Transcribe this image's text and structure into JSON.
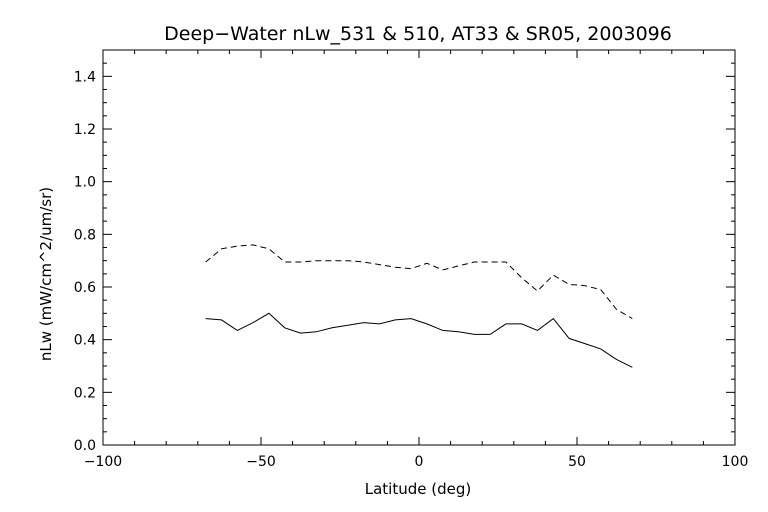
{
  "chart_data": {
    "type": "line",
    "title": "Deep−Water nLw_531 & 510, AT33 & SR05, 2003096",
    "xlabel": "Latitude (deg)",
    "ylabel": "nLw (mW/cm^2/um/sr)",
    "xlim": [
      -100,
      100
    ],
    "ylim": [
      0.0,
      1.5
    ],
    "x_ticks": [
      -100,
      -50,
      0,
      50,
      100
    ],
    "x_tick_labels": [
      "−100",
      "−50",
      "0",
      "50",
      "100"
    ],
    "y_ticks": [
      0.0,
      0.2,
      0.4,
      0.6,
      0.8,
      1.0,
      1.2,
      1.4
    ],
    "y_tick_labels": [
      "0.0",
      "0.2",
      "0.4",
      "0.6",
      "0.8",
      "1.0",
      "1.2",
      "1.4"
    ],
    "grid": false,
    "legend": "none",
    "series": [
      {
        "style": "solid",
        "color": "#000000",
        "x": [
          -67.5,
          -62.5,
          -57.5,
          -52.5,
          -47.5,
          -42.5,
          -37.5,
          -32.5,
          -27.5,
          -22.5,
          -17.5,
          -12.5,
          -7.5,
          -2.5,
          2.5,
          7.5,
          12.5,
          17.5,
          22.5,
          27.5,
          32.5,
          37.5,
          42.5,
          47.5,
          52.5,
          57.5,
          62.5,
          67.5
        ],
        "y": [
          0.48,
          0.475,
          0.435,
          0.465,
          0.5,
          0.445,
          0.425,
          0.43,
          0.445,
          0.455,
          0.465,
          0.46,
          0.475,
          0.48,
          0.46,
          0.435,
          0.43,
          0.42,
          0.42,
          0.46,
          0.46,
          0.435,
          0.48,
          0.405,
          0.385,
          0.365,
          0.325,
          0.295
        ]
      },
      {
        "style": "dashed",
        "color": "#000000",
        "x": [
          -67.5,
          -62.5,
          -57.5,
          -52.5,
          -47.5,
          -42.5,
          -37.5,
          -32.5,
          -27.5,
          -22.5,
          -17.5,
          -12.5,
          -7.5,
          -2.5,
          2.5,
          7.5,
          12.5,
          17.5,
          22.5,
          27.5,
          32.5,
          37.5,
          42.5,
          47.5,
          52.5,
          57.5,
          62.5,
          67.5
        ],
        "y": [
          0.695,
          0.745,
          0.755,
          0.76,
          0.745,
          0.695,
          0.695,
          0.7,
          0.7,
          0.7,
          0.695,
          0.685,
          0.675,
          0.67,
          0.69,
          0.665,
          0.68,
          0.695,
          0.695,
          0.695,
          0.635,
          0.585,
          0.645,
          0.61,
          0.605,
          0.59,
          0.515,
          0.48
        ]
      }
    ]
  }
}
